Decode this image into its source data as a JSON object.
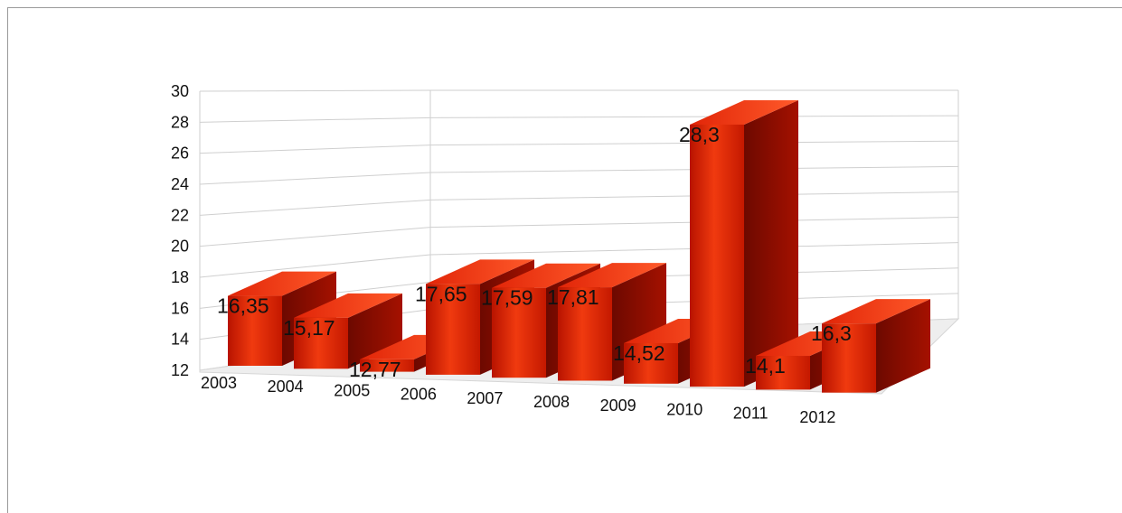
{
  "chart_data": {
    "type": "bar",
    "title": "",
    "xlabel": "",
    "ylabel": "",
    "categories": [
      "2003",
      "2004",
      "2005",
      "2006",
      "2007",
      "2008",
      "2009",
      "2010",
      "2011",
      "2012"
    ],
    "values": [
      16.35,
      15.17,
      12.77,
      17.65,
      17.59,
      17.81,
      14.52,
      28.3,
      14.1,
      16.3
    ],
    "data_labels": [
      "16,35",
      "15,17",
      "12,77",
      "17,65",
      "17,59",
      "17,81",
      "14,52",
      "28,3",
      "14,1",
      "16,3"
    ],
    "y_ticks": [
      "12",
      "14",
      "16",
      "18",
      "20",
      "22",
      "24",
      "26",
      "28",
      "30"
    ],
    "ylim": [
      12,
      30
    ],
    "grid": true,
    "legend": "none",
    "style": "3d",
    "bar_color": "#e11a00"
  }
}
